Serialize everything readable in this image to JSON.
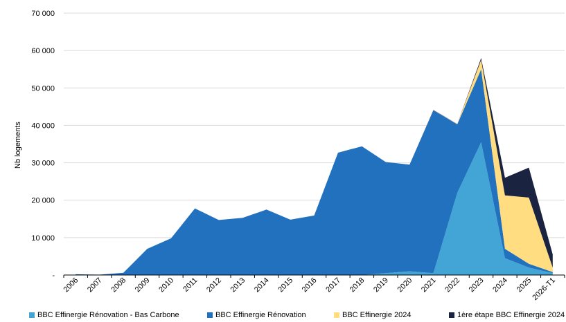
{
  "chart_data": {
    "type": "area",
    "stacked": true,
    "title": "",
    "xlabel": "",
    "ylabel": "Nb logements",
    "ylim": [
      0,
      70000
    ],
    "yticks": [
      0,
      10000,
      20000,
      30000,
      40000,
      50000,
      60000,
      70000
    ],
    "ytick_labels": [
      "-",
      "10 000",
      "20 000",
      "30 000",
      "40 000",
      "50 000",
      "60 000",
      "70 000"
    ],
    "grid": "horizontal",
    "legend_position": "bottom",
    "categories": [
      "2006",
      "2007",
      "2008",
      "2009",
      "2010",
      "2011",
      "2012",
      "2013",
      "2014",
      "2015",
      "2016",
      "2017",
      "2018",
      "2019",
      "2020",
      "2021",
      "2022",
      "2023",
      "2024",
      "2025",
      "2026-T1"
    ],
    "series": [
      {
        "name": "BBC Effinergie Rénovation - Bas Carbone",
        "color": "#42A5D5",
        "values": [
          0,
          0,
          0,
          0,
          0,
          0,
          0,
          0,
          0,
          0,
          0,
          0,
          0,
          500,
          1000,
          500,
          22000,
          35500,
          4500,
          2000,
          500
        ]
      },
      {
        "name": "BBC Effinergie Rénovation",
        "color": "#2271BF",
        "values": [
          200,
          100,
          600,
          7000,
          9800,
          17800,
          14700,
          15300,
          17500,
          14800,
          15900,
          32700,
          34400,
          29700,
          28500,
          43500,
          18300,
          19500,
          2500,
          1000,
          300
        ]
      },
      {
        "name": "BBC Effinergie 2024",
        "color": "#FFDD80",
        "values": [
          0,
          0,
          0,
          0,
          0,
          0,
          0,
          0,
          0,
          0,
          0,
          0,
          0,
          0,
          0,
          0,
          100,
          2500,
          14300,
          17700,
          1200
        ]
      },
      {
        "name": "1ère étape BBC Effinergie 2024",
        "color": "#1A2340",
        "values": [
          0,
          0,
          0,
          0,
          0,
          0,
          0,
          0,
          0,
          0,
          0,
          0,
          0,
          0,
          0,
          100,
          0,
          500,
          4700,
          8000,
          3500
        ]
      }
    ]
  }
}
